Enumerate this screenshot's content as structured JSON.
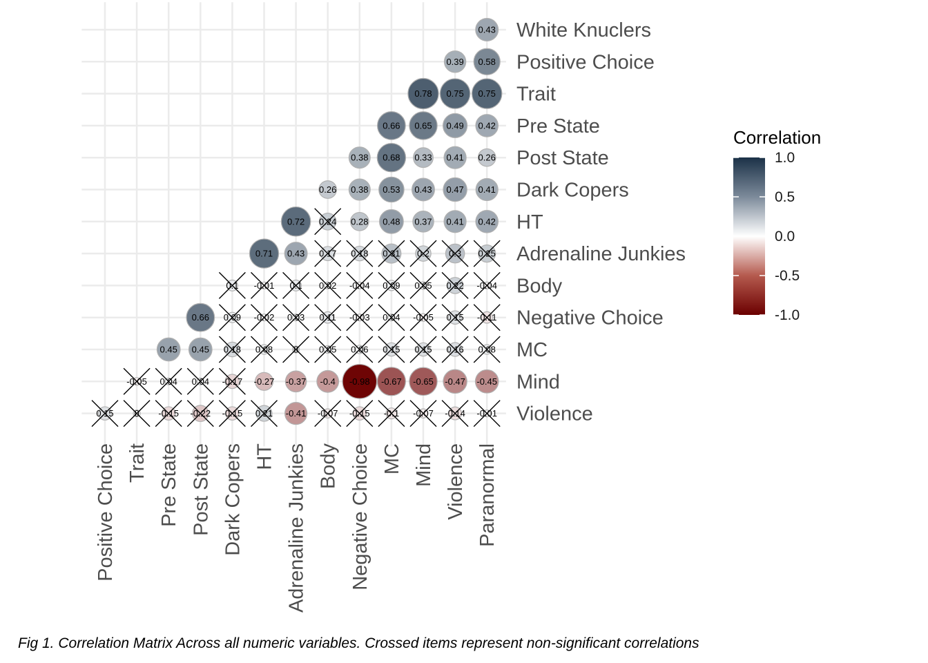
{
  "chart_data": {
    "type": "heatmap",
    "style": "lower-triangular correlation matrix, circles sized and colored by correlation",
    "x_labels": [
      "Positive Choice",
      "Trait",
      "Pre State",
      "Post State",
      "Dark Copers",
      "HT",
      "Adrenaline Junkies",
      "Body",
      "Negative Choice",
      "MC",
      "Mind",
      "Violence",
      "Paranormal"
    ],
    "y_labels": [
      "White Knuclers",
      "Positive Choice",
      "Trait",
      "Pre State",
      "Post State",
      "Dark Copers",
      "HT",
      "Adrenaline Junkies",
      "Body",
      "Negative Choice",
      "MC",
      "Mind",
      "Violence"
    ],
    "cells": [
      {
        "row": "White Knuclers",
        "col": "Paranormal",
        "value": 0.43,
        "label": "0.43",
        "crossed": false
      },
      {
        "row": "Positive Choice",
        "col": "Violence",
        "value": 0.39,
        "label": "0.39",
        "crossed": false
      },
      {
        "row": "Positive Choice",
        "col": "Paranormal",
        "value": 0.58,
        "label": "0.58",
        "crossed": false
      },
      {
        "row": "Trait",
        "col": "Mind",
        "value": 0.78,
        "label": "0.78",
        "crossed": false
      },
      {
        "row": "Trait",
        "col": "Violence",
        "value": 0.75,
        "label": "0.75",
        "crossed": false
      },
      {
        "row": "Trait",
        "col": "Paranormal",
        "value": 0.75,
        "label": "0.75",
        "crossed": false
      },
      {
        "row": "Pre State",
        "col": "MC",
        "value": 0.66,
        "label": "0.66",
        "crossed": false
      },
      {
        "row": "Pre State",
        "col": "Mind",
        "value": 0.65,
        "label": "0.65",
        "crossed": false
      },
      {
        "row": "Pre State",
        "col": "Violence",
        "value": 0.49,
        "label": "0.49",
        "crossed": false
      },
      {
        "row": "Pre State",
        "col": "Paranormal",
        "value": 0.42,
        "label": "0.42",
        "crossed": false
      },
      {
        "row": "Post State",
        "col": "Negative Choice",
        "value": 0.38,
        "label": "0.38",
        "crossed": false
      },
      {
        "row": "Post State",
        "col": "MC",
        "value": 0.68,
        "label": "0.68",
        "crossed": false
      },
      {
        "row": "Post State",
        "col": "Mind",
        "value": 0.33,
        "label": "0.33",
        "crossed": false
      },
      {
        "row": "Post State",
        "col": "Violence",
        "value": 0.41,
        "label": "0.41",
        "crossed": false
      },
      {
        "row": "Post State",
        "col": "Paranormal",
        "value": 0.26,
        "label": "0.26",
        "crossed": false
      },
      {
        "row": "Dark Copers",
        "col": "Body",
        "value": 0.26,
        "label": "0.26",
        "crossed": false
      },
      {
        "row": "Dark Copers",
        "col": "Negative Choice",
        "value": 0.38,
        "label": "0.38",
        "crossed": false
      },
      {
        "row": "Dark Copers",
        "col": "MC",
        "value": 0.53,
        "label": "0.53",
        "crossed": false
      },
      {
        "row": "Dark Copers",
        "col": "Mind",
        "value": 0.43,
        "label": "0.43",
        "crossed": false
      },
      {
        "row": "Dark Copers",
        "col": "Violence",
        "value": 0.47,
        "label": "0.47",
        "crossed": false
      },
      {
        "row": "Dark Copers",
        "col": "Paranormal",
        "value": 0.41,
        "label": "0.41",
        "crossed": false
      },
      {
        "row": "HT",
        "col": "Adrenaline Junkies",
        "value": 0.72,
        "label": "0.72",
        "crossed": false
      },
      {
        "row": "HT",
        "col": "Body",
        "value": 0.24,
        "label": "0.24",
        "crossed": true
      },
      {
        "row": "HT",
        "col": "Negative Choice",
        "value": 0.28,
        "label": "0.28",
        "crossed": false
      },
      {
        "row": "HT",
        "col": "MC",
        "value": 0.48,
        "label": "0.48",
        "crossed": false
      },
      {
        "row": "HT",
        "col": "Mind",
        "value": 0.37,
        "label": "0.37",
        "crossed": false
      },
      {
        "row": "HT",
        "col": "Violence",
        "value": 0.41,
        "label": "0.41",
        "crossed": false
      },
      {
        "row": "HT",
        "col": "Paranormal",
        "value": 0.42,
        "label": "0.42",
        "crossed": false
      },
      {
        "row": "Adrenaline Junkies",
        "col": "HT",
        "value": 0.71,
        "label": "0.71",
        "crossed": false
      },
      {
        "row": "Adrenaline Junkies",
        "col": "Adrenaline Junkies",
        "value": 0.43,
        "label": "0.43",
        "crossed": false
      },
      {
        "row": "Adrenaline Junkies",
        "col": "Body",
        "value": 0.17,
        "label": "0.17",
        "crossed": true
      },
      {
        "row": "Adrenaline Junkies",
        "col": "Negative Choice",
        "value": 0.18,
        "label": "0.18",
        "crossed": true
      },
      {
        "row": "Adrenaline Junkies",
        "col": "MC",
        "value": 0.31,
        "label": "0.31",
        "crossed": true
      },
      {
        "row": "Adrenaline Junkies",
        "col": "Mind",
        "value": 0.2,
        "label": "0.2",
        "crossed": true
      },
      {
        "row": "Adrenaline Junkies",
        "col": "Violence",
        "value": 0.3,
        "label": "0.3",
        "crossed": true
      },
      {
        "row": "Adrenaline Junkies",
        "col": "Paranormal",
        "value": 0.25,
        "label": "0.25",
        "crossed": true
      },
      {
        "row": "Body",
        "col": "Dark Copers",
        "value": 0.1,
        "label": "0.1",
        "crossed": true
      },
      {
        "row": "Body",
        "col": "HT",
        "value": -0.01,
        "label": "-0.01",
        "crossed": true
      },
      {
        "row": "Body",
        "col": "Adrenaline Junkies",
        "value": 0.1,
        "label": "0.1",
        "crossed": true
      },
      {
        "row": "Body",
        "col": "Body",
        "value": 0.02,
        "label": "0.02",
        "crossed": true
      },
      {
        "row": "Body",
        "col": "Negative Choice",
        "value": -0.04,
        "label": "-0.04",
        "crossed": true
      },
      {
        "row": "Body",
        "col": "MC",
        "value": 0.09,
        "label": "0.09",
        "crossed": true
      },
      {
        "row": "Body",
        "col": "Mind",
        "value": 0.05,
        "label": "0.05",
        "crossed": true
      },
      {
        "row": "Body",
        "col": "Violence",
        "value": 0.22,
        "label": "0.22",
        "crossed": true
      },
      {
        "row": "Body",
        "col": "Paranormal",
        "value": -0.04,
        "label": "-0.04",
        "crossed": true
      },
      {
        "row": "Negative Choice",
        "col": "Post State",
        "value": 0.66,
        "label": "0.66",
        "crossed": false
      },
      {
        "row": "Negative Choice",
        "col": "Dark Copers",
        "value": 0.09,
        "label": "0.09",
        "crossed": true
      },
      {
        "row": "Negative Choice",
        "col": "HT",
        "value": -0.02,
        "label": "-0.02",
        "crossed": true
      },
      {
        "row": "Negative Choice",
        "col": "Adrenaline Junkies",
        "value": 0.03,
        "label": "0.03",
        "crossed": true
      },
      {
        "row": "Negative Choice",
        "col": "Body",
        "value": 0.11,
        "label": "0.11",
        "crossed": true
      },
      {
        "row": "Negative Choice",
        "col": "Negative Choice",
        "value": -0.03,
        "label": "-0.03",
        "crossed": true
      },
      {
        "row": "Negative Choice",
        "col": "MC",
        "value": 0.04,
        "label": "0.04",
        "crossed": true
      },
      {
        "row": "Negative Choice",
        "col": "Mind",
        "value": -0.05,
        "label": "-0.05",
        "crossed": true
      },
      {
        "row": "Negative Choice",
        "col": "Violence",
        "value": 0.15,
        "label": "0.15",
        "crossed": true
      },
      {
        "row": "Negative Choice",
        "col": "Paranormal",
        "value": -0.11,
        "label": "-0.11",
        "crossed": true
      },
      {
        "row": "MC",
        "col": "Pre State",
        "value": 0.45,
        "label": "0.45",
        "crossed": false
      },
      {
        "row": "MC",
        "col": "Post State",
        "value": 0.45,
        "label": "0.45",
        "crossed": false
      },
      {
        "row": "MC",
        "col": "Dark Copers",
        "value": 0.18,
        "label": "0.18",
        "crossed": true
      },
      {
        "row": "MC",
        "col": "HT",
        "value": 0.08,
        "label": "0.08",
        "crossed": true
      },
      {
        "row": "MC",
        "col": "Adrenaline Junkies",
        "value": 0,
        "label": "0",
        "crossed": true
      },
      {
        "row": "MC",
        "col": "Body",
        "value": 0.05,
        "label": "0.05",
        "crossed": true
      },
      {
        "row": "MC",
        "col": "Negative Choice",
        "value": 0.06,
        "label": "0.06",
        "crossed": true
      },
      {
        "row": "MC",
        "col": "MC",
        "value": 0.15,
        "label": "0.15",
        "crossed": true
      },
      {
        "row": "MC",
        "col": "Mind",
        "value": 0.15,
        "label": "0.15",
        "crossed": true
      },
      {
        "row": "MC",
        "col": "Violence",
        "value": 0.16,
        "label": "0.16",
        "crossed": true
      },
      {
        "row": "MC",
        "col": "Paranormal",
        "value": 0.08,
        "label": "0.08",
        "crossed": true
      },
      {
        "row": "Mind",
        "col": "Trait",
        "value": -0.05,
        "label": "-0.05",
        "crossed": true
      },
      {
        "row": "Mind",
        "col": "Pre State",
        "value": 0.04,
        "label": "0.04",
        "crossed": true
      },
      {
        "row": "Mind",
        "col": "Post State",
        "value": 0.04,
        "label": "0.04",
        "crossed": true
      },
      {
        "row": "Mind",
        "col": "Dark Copers",
        "value": -0.17,
        "label": "-0.17",
        "crossed": true
      },
      {
        "row": "Mind",
        "col": "HT",
        "value": -0.27,
        "label": "-0.27",
        "crossed": false
      },
      {
        "row": "Mind",
        "col": "Adrenaline Junkies",
        "value": -0.37,
        "label": "-0.37",
        "crossed": false
      },
      {
        "row": "Mind",
        "col": "Body",
        "value": -0.4,
        "label": "-0.4",
        "crossed": false
      },
      {
        "row": "Mind",
        "col": "Negative Choice",
        "value": -0.98,
        "label": "-0.98",
        "crossed": false
      },
      {
        "row": "Mind",
        "col": "MC",
        "value": -0.67,
        "label": "-0.67",
        "crossed": false
      },
      {
        "row": "Mind",
        "col": "Mind",
        "value": -0.65,
        "label": "-0.65",
        "crossed": false
      },
      {
        "row": "Mind",
        "col": "Violence",
        "value": -0.47,
        "label": "-0.47",
        "crossed": false
      },
      {
        "row": "Mind",
        "col": "Paranormal",
        "value": -0.45,
        "label": "-0.45",
        "crossed": false
      },
      {
        "row": "Violence",
        "col": "Positive Choice",
        "value": 0.15,
        "label": "0.15",
        "crossed": true
      },
      {
        "row": "Violence",
        "col": "Trait",
        "value": 0,
        "label": "0",
        "crossed": true
      },
      {
        "row": "Violence",
        "col": "Pre State",
        "value": -0.15,
        "label": "-0.15",
        "crossed": true
      },
      {
        "row": "Violence",
        "col": "Post State",
        "value": -0.22,
        "label": "-0.22",
        "crossed": true
      },
      {
        "row": "Violence",
        "col": "Dark Copers",
        "value": -0.15,
        "label": "-0.15",
        "crossed": true
      },
      {
        "row": "Violence",
        "col": "HT",
        "value": 0.21,
        "label": "0.21",
        "crossed": true
      },
      {
        "row": "Violence",
        "col": "Adrenaline Junkies",
        "value": -0.41,
        "label": "-0.41",
        "crossed": false
      },
      {
        "row": "Violence",
        "col": "Body",
        "value": -0.07,
        "label": "-0.07",
        "crossed": true
      },
      {
        "row": "Violence",
        "col": "Negative Choice",
        "value": -0.15,
        "label": "-0.15",
        "crossed": true
      },
      {
        "row": "Violence",
        "col": "MC",
        "value": -0.1,
        "label": "-0.1",
        "crossed": true
      },
      {
        "row": "Violence",
        "col": "Mind",
        "value": -0.07,
        "label": "-0.07",
        "crossed": true
      },
      {
        "row": "Violence",
        "col": "Violence",
        "value": -0.14,
        "label": "-0.14",
        "crossed": true
      },
      {
        "row": "Violence",
        "col": "Paranormal",
        "value": -0.01,
        "label": "-0.01",
        "crossed": true
      }
    ],
    "legend": {
      "title": "Correlation",
      "ticks": [
        {
          "value": 1.0,
          "label": "1.0"
        },
        {
          "value": 0.5,
          "label": "0.5"
        },
        {
          "value": 0.0,
          "label": "0.0"
        },
        {
          "value": -0.5,
          "label": "-0.5"
        },
        {
          "value": -1.0,
          "label": "-1.0"
        }
      ],
      "placement": "right",
      "range": [
        -1,
        1
      ]
    },
    "colors": {
      "high": "#1b3147",
      "mid": "#ffffff",
      "low": "#6b0000"
    },
    "grid": true
  },
  "caption": "Fig 1. Correlation Matrix Across all numeric variables. Crossed items represent non-significant correlations"
}
